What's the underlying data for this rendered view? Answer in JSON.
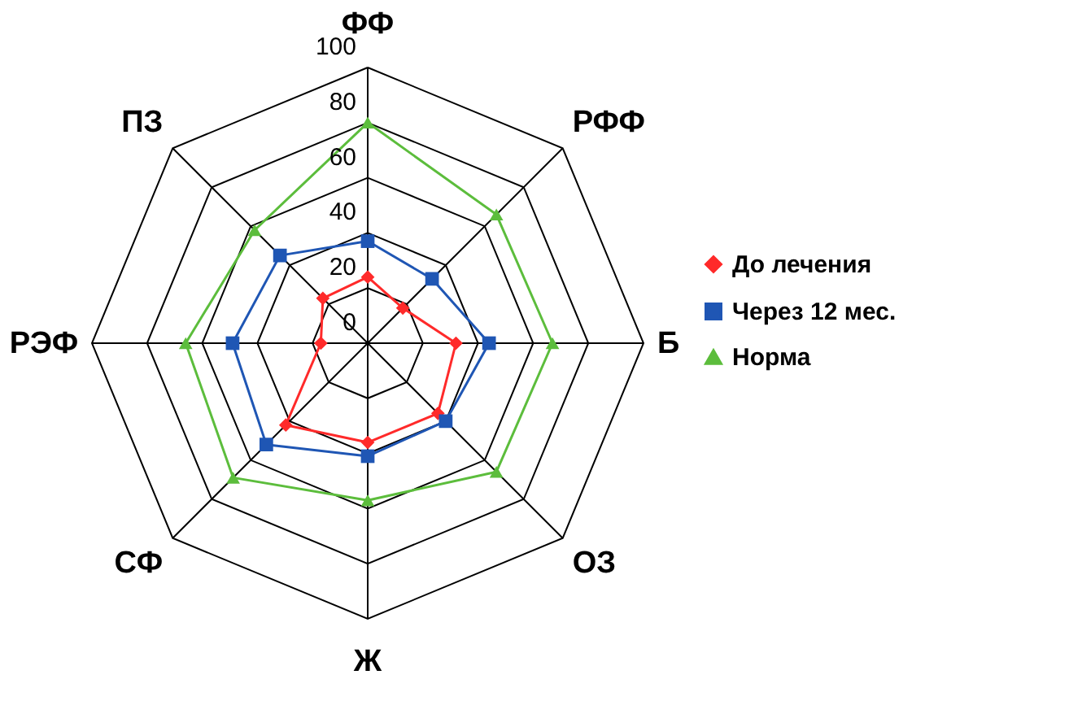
{
  "chart_data": {
    "type": "radar",
    "categories": [
      "ФФ",
      "РФФ",
      "Б",
      "ОЗ",
      "Ж",
      "СФ",
      "РЭФ",
      "ПЗ"
    ],
    "ylim": [
      0,
      100
    ],
    "yticks": [
      0,
      20,
      40,
      60,
      80,
      100
    ],
    "grid": true,
    "legend": "right",
    "series": [
      {
        "name": "До лечения",
        "color": "#ff2a2a",
        "marker": "diamond",
        "values": [
          24,
          18,
          32,
          36,
          36,
          42,
          17,
          23
        ]
      },
      {
        "name": "Через 12 мес.",
        "color": "#1f56b4",
        "marker": "square",
        "values": [
          37,
          33,
          44,
          40,
          41,
          52,
          49,
          45
        ]
      },
      {
        "name": "Норма",
        "color": "#5cbd3c",
        "marker": "triangle",
        "values": [
          80,
          66,
          67,
          66,
          57,
          69,
          66,
          58
        ]
      }
    ]
  }
}
